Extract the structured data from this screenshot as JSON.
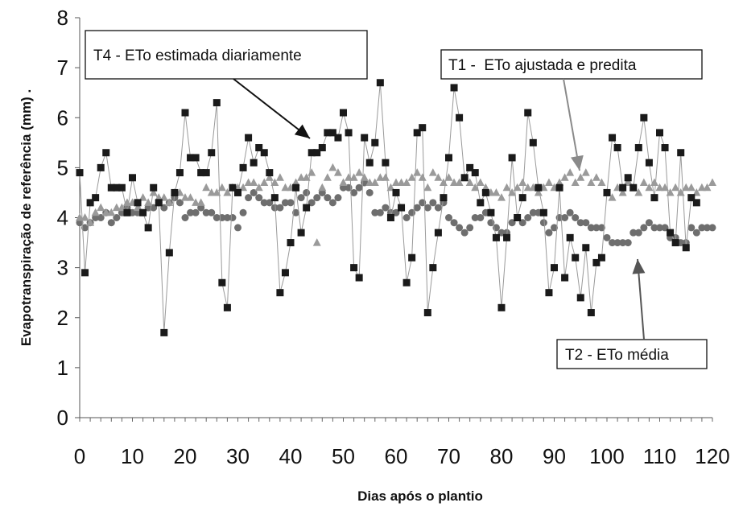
{
  "chart_data": {
    "type": "scatter",
    "title": "",
    "xlabel": "Dias após o plantio",
    "ylabel": "Evapotranspiração de referência (mm) .",
    "xlim": [
      0,
      120
    ],
    "ylim": [
      0,
      8
    ],
    "xticks": [
      0,
      10,
      20,
      30,
      40,
      50,
      60,
      70,
      80,
      90,
      100,
      110,
      120
    ],
    "yticks": [
      0,
      1,
      2,
      3,
      4,
      5,
      6,
      7,
      8
    ],
    "grid": false,
    "legend": "callout annotations",
    "series": [
      {
        "name": "T4 - ETo estimada diariamente",
        "marker": "square",
        "color": "#1a1a1a",
        "connected": true,
        "line_color": "#9a9a9a",
        "x": [
          0,
          1,
          2,
          3,
          4,
          5,
          6,
          7,
          8,
          9,
          10,
          11,
          12,
          13,
          14,
          15,
          16,
          17,
          18,
          19,
          20,
          21,
          22,
          23,
          24,
          25,
          26,
          27,
          28,
          29,
          30,
          31,
          32,
          33,
          34,
          35,
          36,
          37,
          38,
          39,
          40,
          41,
          42,
          43,
          44,
          45,
          46,
          47,
          48,
          49,
          50,
          51,
          52,
          53,
          54,
          55,
          56,
          57,
          58,
          59,
          60,
          61,
          62,
          63,
          64,
          65,
          66,
          67,
          68,
          69,
          70,
          71,
          72,
          73,
          74,
          75,
          76,
          77,
          78,
          79,
          80,
          81,
          82,
          83,
          84,
          85,
          86,
          87,
          88,
          89,
          90,
          91,
          92,
          93,
          94,
          95,
          96,
          97,
          98,
          99,
          100,
          101,
          102,
          103,
          104,
          105,
          106,
          107,
          108,
          109,
          110,
          111,
          112,
          113,
          114,
          115,
          116,
          117
        ],
        "values": [
          4.9,
          2.9,
          4.3,
          4.4,
          5.0,
          5.3,
          4.6,
          4.6,
          4.6,
          4.1,
          4.8,
          4.3,
          4.1,
          3.8,
          4.6,
          4.3,
          1.7,
          3.3,
          4.5,
          4.9,
          6.1,
          5.2,
          5.2,
          4.9,
          4.9,
          5.3,
          6.3,
          2.7,
          2.2,
          4.6,
          4.5,
          5.0,
          5.6,
          5.1,
          5.4,
          5.3,
          4.9,
          4.4,
          2.5,
          2.9,
          3.5,
          4.6,
          3.7,
          4.2,
          5.3,
          5.3,
          5.4,
          5.7,
          5.7,
          5.6,
          6.1,
          5.7,
          3.0,
          2.8,
          5.6,
          5.1,
          5.5,
          6.7,
          5.1,
          4.0,
          4.5,
          4.2,
          2.7,
          3.2,
          5.7,
          5.8,
          2.1,
          3.0,
          3.7,
          4.4,
          5.2,
          6.6,
          6.0,
          4.8,
          5.0,
          4.9,
          4.3,
          4.5,
          4.1,
          3.6,
          2.2,
          3.6,
          5.2,
          4.0,
          4.4,
          6.1,
          5.5,
          4.6,
          4.1,
          2.5,
          3.0,
          4.6,
          2.8,
          3.6,
          3.2,
          2.4,
          3.4,
          2.1,
          3.1,
          3.2,
          4.5,
          5.6,
          5.4,
          4.6,
          4.8,
          4.6,
          5.4,
          6.0,
          5.1,
          4.4,
          5.7,
          5.4,
          3.7,
          3.5,
          5.3,
          3.4,
          4.4,
          4.3
        ]
      },
      {
        "name": "T1 -  ETo ajustada e predita",
        "marker": "triangle",
        "color": "#9a9a9a",
        "connected": false,
        "x": [
          0,
          1,
          2,
          3,
          4,
          5,
          6,
          7,
          8,
          9,
          10,
          11,
          12,
          13,
          14,
          15,
          16,
          17,
          18,
          19,
          20,
          21,
          22,
          23,
          24,
          25,
          26,
          27,
          28,
          29,
          30,
          31,
          32,
          33,
          34,
          35,
          36,
          37,
          38,
          39,
          40,
          41,
          42,
          43,
          44,
          45,
          46,
          47,
          48,
          49,
          50,
          51,
          52,
          53,
          54,
          55,
          56,
          57,
          58,
          59,
          60,
          61,
          62,
          63,
          64,
          65,
          66,
          67,
          68,
          69,
          70,
          71,
          72,
          73,
          74,
          75,
          76,
          77,
          78,
          79,
          80,
          81,
          82,
          83,
          84,
          85,
          86,
          87,
          88,
          89,
          90,
          91,
          92,
          93,
          94,
          95,
          96,
          97,
          98,
          99,
          100,
          101,
          102,
          103,
          104,
          105,
          106,
          107,
          108,
          109,
          110,
          111,
          112,
          113,
          114,
          115,
          116,
          117,
          118,
          119,
          120
        ],
        "values": [
          4.0,
          4.0,
          3.9,
          4.1,
          4.2,
          4.1,
          4.1,
          4.2,
          4.2,
          4.3,
          4.3,
          4.2,
          4.4,
          4.3,
          4.5,
          4.4,
          4.4,
          4.3,
          4.5,
          4.5,
          4.4,
          4.4,
          4.3,
          4.3,
          4.6,
          4.5,
          4.5,
          4.6,
          4.5,
          4.6,
          4.6,
          4.6,
          4.7,
          4.7,
          4.6,
          4.7,
          4.8,
          4.7,
          4.8,
          4.6,
          4.6,
          4.7,
          4.8,
          4.8,
          4.9,
          3.5,
          4.6,
          4.8,
          5.0,
          4.9,
          4.7,
          4.8,
          4.8,
          4.9,
          4.8,
          4.7,
          4.7,
          4.8,
          4.8,
          4.6,
          4.7,
          4.7,
          4.7,
          4.8,
          4.9,
          4.8,
          4.6,
          4.9,
          4.8,
          4.7,
          4.8,
          4.7,
          4.7,
          4.8,
          4.7,
          4.6,
          4.7,
          4.6,
          4.5,
          4.5,
          4.4,
          4.6,
          4.5,
          4.6,
          4.7,
          4.6,
          4.6,
          4.5,
          4.6,
          4.7,
          4.6,
          4.7,
          4.8,
          4.9,
          4.7,
          4.8,
          4.9,
          4.7,
          4.8,
          4.7,
          4.5,
          4.4,
          4.6,
          4.5,
          4.7,
          4.6,
          4.5,
          4.7,
          4.6,
          4.7,
          4.6,
          4.6,
          4.5,
          4.6,
          4.5,
          4.6,
          4.6,
          4.5,
          4.6,
          4.6,
          4.7
        ]
      },
      {
        "name": "T2 - ETo média",
        "marker": "circle",
        "color": "#6e6e6e",
        "connected": false,
        "x": [
          0,
          1,
          2,
          3,
          4,
          5,
          6,
          7,
          8,
          9,
          10,
          11,
          12,
          13,
          14,
          15,
          16,
          17,
          18,
          19,
          20,
          21,
          22,
          23,
          24,
          25,
          26,
          27,
          28,
          29,
          30,
          31,
          32,
          33,
          34,
          35,
          36,
          37,
          38,
          39,
          40,
          41,
          42,
          43,
          44,
          45,
          46,
          47,
          48,
          49,
          50,
          51,
          52,
          53,
          54,
          55,
          56,
          57,
          58,
          59,
          60,
          61,
          62,
          63,
          64,
          65,
          66,
          67,
          68,
          69,
          70,
          71,
          72,
          73,
          74,
          75,
          76,
          77,
          78,
          79,
          80,
          81,
          82,
          83,
          84,
          85,
          86,
          87,
          88,
          89,
          90,
          91,
          92,
          93,
          94,
          95,
          96,
          97,
          98,
          99,
          100,
          101,
          102,
          103,
          104,
          105,
          106,
          107,
          108,
          109,
          110,
          111,
          112,
          113,
          114,
          115,
          116,
          117,
          118,
          119,
          120
        ],
        "values": [
          3.9,
          3.8,
          3.9,
          4.0,
          4.0,
          4.1,
          3.9,
          4.0,
          4.1,
          4.2,
          4.1,
          4.1,
          4.1,
          4.2,
          4.2,
          4.3,
          4.2,
          4.3,
          4.4,
          4.3,
          4.0,
          4.1,
          4.1,
          4.2,
          4.1,
          4.1,
          4.0,
          4.0,
          4.0,
          4.0,
          3.8,
          4.1,
          4.4,
          4.5,
          4.4,
          4.3,
          4.3,
          4.2,
          4.2,
          4.3,
          4.3,
          4.1,
          4.4,
          4.5,
          4.3,
          4.4,
          4.5,
          4.4,
          4.3,
          4.4,
          4.6,
          4.6,
          4.5,
          4.6,
          4.7,
          4.5,
          4.1,
          4.1,
          4.2,
          4.1,
          4.1,
          4.2,
          4.0,
          4.1,
          4.2,
          4.3,
          4.2,
          4.3,
          4.2,
          4.3,
          4.0,
          3.9,
          3.8,
          3.7,
          3.8,
          4.0,
          4.0,
          4.1,
          3.9,
          3.8,
          3.7,
          3.7,
          3.9,
          4.0,
          3.9,
          4.0,
          4.1,
          4.1,
          3.9,
          3.7,
          3.8,
          4.0,
          4.0,
          4.1,
          4.0,
          3.9,
          3.9,
          3.8,
          3.8,
          3.8,
          3.6,
          3.5,
          3.5,
          3.5,
          3.5,
          3.7,
          3.7,
          3.8,
          3.9,
          3.8,
          3.8,
          3.8,
          3.6,
          3.6,
          3.5,
          3.5,
          3.8,
          3.7,
          3.8,
          3.8,
          3.8
        ]
      }
    ],
    "annotations": [
      {
        "text": "T4 - ETo estimada diariamente",
        "series": 0
      },
      {
        "text": "T1 -  ETo ajustada e predita",
        "series": 1
      },
      {
        "text": "T2 - ETo média",
        "series": 2
      }
    ]
  }
}
